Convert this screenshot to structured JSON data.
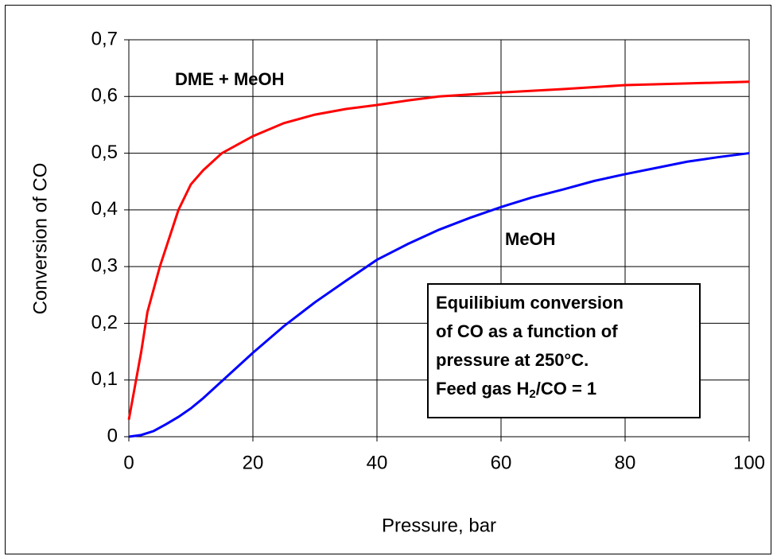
{
  "chart_data": {
    "type": "line",
    "xlabel": "Pressure, bar",
    "ylabel": "Conversion of CO",
    "xlim": [
      0,
      100
    ],
    "xticks": [
      0,
      20,
      40,
      60,
      80,
      100
    ],
    "ylim": [
      0,
      0.7
    ],
    "yticks": [
      0,
      {
        "value": 0.1,
        "label": "0,1"
      },
      {
        "value": 0.2,
        "label": "0,2"
      },
      {
        "value": 0.3,
        "label": "0,3"
      },
      {
        "value": 0.4,
        "label": "0,4"
      },
      {
        "value": 0.5,
        "label": "0,5"
      },
      {
        "value": 0.6,
        "label": "0,6"
      },
      {
        "value": 0.7,
        "label": "0,7"
      }
    ],
    "grid": true,
    "series": [
      {
        "name": "DME + MeOH",
        "color": "#ff0000",
        "x": [
          0,
          1,
          2,
          3,
          5,
          8,
          10,
          12,
          15,
          20,
          25,
          30,
          35,
          40,
          45,
          50,
          60,
          70,
          80,
          90,
          100
        ],
        "values": [
          0.03,
          0.09,
          0.15,
          0.22,
          0.3,
          0.4,
          0.445,
          0.47,
          0.5,
          0.53,
          0.553,
          0.568,
          0.578,
          0.585,
          0.593,
          0.6,
          0.607,
          0.613,
          0.62,
          0.623,
          0.626
        ]
      },
      {
        "name": "MeOH",
        "color": "#0000ff",
        "x": [
          0,
          2,
          4,
          6,
          8,
          10,
          12,
          15,
          20,
          25,
          30,
          35,
          40,
          45,
          50,
          55,
          60,
          65,
          70,
          75,
          80,
          85,
          90,
          95,
          100
        ],
        "values": [
          0,
          0.003,
          0.01,
          0.022,
          0.035,
          0.05,
          0.068,
          0.098,
          0.148,
          0.195,
          0.237,
          0.275,
          0.312,
          0.34,
          0.365,
          0.386,
          0.405,
          0.422,
          0.436,
          0.451,
          0.463,
          0.474,
          0.485,
          0.493,
          0.5
        ]
      }
    ],
    "annotation": {
      "lines": [
        "Equilibium conversion",
        "of CO as a function of",
        "pressure at 250°C."
      ],
      "last": [
        "Feed gas H",
        "2",
        "/CO = 1"
      ]
    }
  }
}
